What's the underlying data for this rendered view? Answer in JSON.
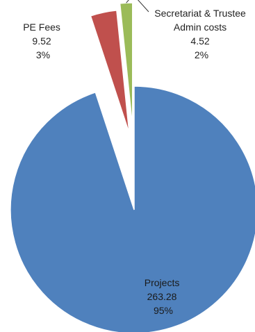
{
  "chart_data": {
    "type": "pie",
    "title": "",
    "slices": [
      {
        "name": "Projects",
        "value": 263.28,
        "percent": "95%",
        "value_label": "263.28",
        "color": "#4f81bd",
        "exploded": false
      },
      {
        "name": "PE Fees",
        "value": 9.52,
        "percent": "3%",
        "value_label": "9.52",
        "color": "#c0504d",
        "exploded": true
      },
      {
        "name_lines": [
          "Secretariat & Trustee",
          "Admin costs"
        ],
        "name": "Secretariat & Trustee Admin costs",
        "value": 4.52,
        "percent": "2%",
        "value_label": "4.52",
        "color": "#9bbb59",
        "exploded": true
      }
    ],
    "legend": "none",
    "start_angle": "12 o'clock, clockwise"
  }
}
